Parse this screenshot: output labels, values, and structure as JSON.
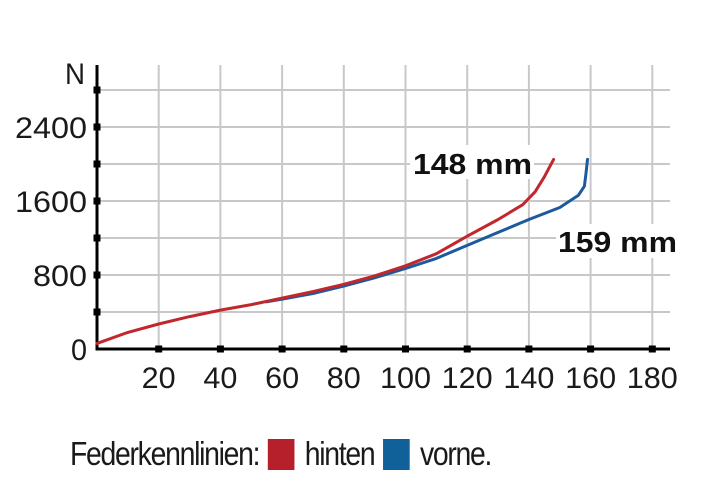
{
  "chart_data": {
    "type": "line",
    "title": "",
    "xlabel": "",
    "ylabel": "N",
    "xlim": [
      0,
      185
    ],
    "ylim": [
      0,
      2800
    ],
    "grid": true,
    "x_ticks": [
      20,
      40,
      60,
      80,
      100,
      120,
      140,
      160,
      180
    ],
    "y_tick_labels": [
      0,
      800,
      1600,
      2400
    ],
    "y_minor_ticks": [
      400,
      1200,
      2000,
      2800
    ],
    "series": [
      {
        "name": "hinten",
        "color": "#c1272d",
        "end_label": "148 mm",
        "points": [
          [
            0,
            60
          ],
          [
            10,
            180
          ],
          [
            20,
            270
          ],
          [
            30,
            350
          ],
          [
            40,
            420
          ],
          [
            50,
            480
          ],
          [
            60,
            550
          ],
          [
            70,
            620
          ],
          [
            80,
            700
          ],
          [
            90,
            790
          ],
          [
            100,
            900
          ],
          [
            110,
            1030
          ],
          [
            120,
            1220
          ],
          [
            130,
            1400
          ],
          [
            138,
            1560
          ],
          [
            142,
            1700
          ],
          [
            145,
            1860
          ],
          [
            148,
            2050
          ]
        ]
      },
      {
        "name": "vorne",
        "color": "#1b5a9c",
        "end_label": "159 mm",
        "points": [
          [
            55,
            510
          ],
          [
            60,
            540
          ],
          [
            70,
            600
          ],
          [
            80,
            680
          ],
          [
            90,
            770
          ],
          [
            100,
            870
          ],
          [
            110,
            980
          ],
          [
            120,
            1120
          ],
          [
            130,
            1260
          ],
          [
            140,
            1400
          ],
          [
            150,
            1530
          ],
          [
            156,
            1660
          ],
          [
            158,
            1760
          ],
          [
            158.5,
            1900
          ],
          [
            159,
            2050
          ]
        ]
      }
    ],
    "legend": {
      "position": "bottom",
      "title": "Federkennlinien:",
      "entries": [
        "hinten",
        "vorne."
      ]
    }
  },
  "axis": {
    "y_unit": "N",
    "y_labels": [
      "2400",
      "1600",
      "800",
      "0"
    ],
    "x_labels": [
      "20",
      "40",
      "60",
      "80",
      "100",
      "120",
      "140",
      "160",
      "180"
    ]
  },
  "annotations": {
    "rear": "148 mm",
    "front": "159 mm"
  },
  "legend": {
    "title": "Federkennlinien:",
    "rear_label": "hinten",
    "front_label": "vorne.",
    "rear_color": "#b5202a",
    "front_color": "#10609a"
  }
}
